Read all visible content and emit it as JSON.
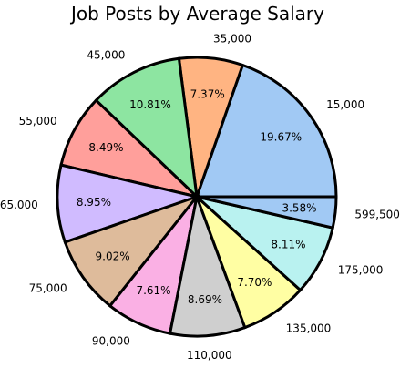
{
  "chart_data": {
    "type": "pie",
    "title": "Job Posts by Average Salary",
    "categories": [
      "15,000",
      "35,000",
      "45,000",
      "55,000",
      "65,000",
      "75,000",
      "90,000",
      "110,000",
      "135,000",
      "175,000",
      "599,500"
    ],
    "values": [
      19.67,
      7.37,
      10.81,
      8.49,
      8.95,
      9.02,
      7.61,
      8.69,
      7.7,
      8.11,
      3.58
    ],
    "value_labels": [
      "19.67%",
      "7.37%",
      "10.81%",
      "8.49%",
      "8.95%",
      "9.02%",
      "7.61%",
      "8.69%",
      "7.70%",
      "8.11%",
      "3.58%"
    ],
    "colors": [
      "#a1c9f4",
      "#ffb482",
      "#8de5a1",
      "#ff9f9b",
      "#d0bbff",
      "#debb9b",
      "#fab0e4",
      "#cfcfcf",
      "#fffea3",
      "#b9f2f0",
      "#a1c9f4"
    ],
    "start_angle_deg": 0,
    "direction": "counterclockwise",
    "legend": "none"
  }
}
